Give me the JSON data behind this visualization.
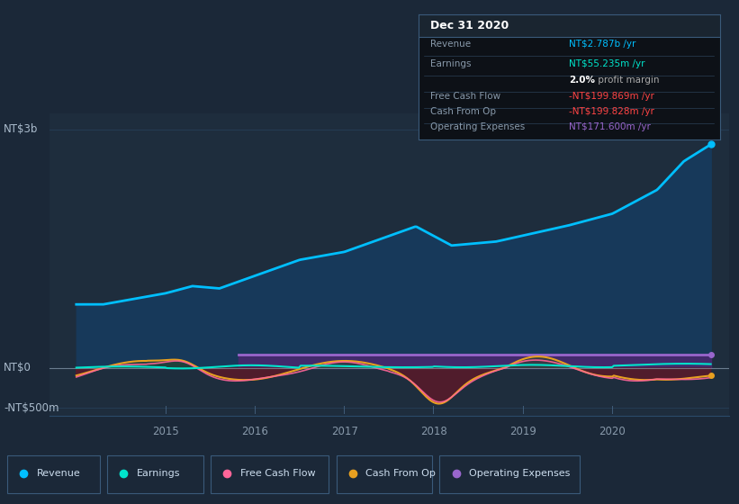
{
  "bg_color": "#1b2838",
  "plot_bg_color": "#1e2d3d",
  "revenue_color": "#00bfff",
  "earnings_color": "#00e5cc",
  "fcf_color": "#ff6699",
  "cashfromop_color": "#e8a020",
  "opex_color": "#9966cc",
  "legend_items": [
    "Revenue",
    "Earnings",
    "Free Cash Flow",
    "Cash From Op",
    "Operating Expenses"
  ],
  "legend_colors": [
    "#00bfff",
    "#00e5cc",
    "#ff6699",
    "#e8a020",
    "#9966cc"
  ],
  "ylim": [
    -600,
    3200
  ],
  "xlim_start": 2013.7,
  "xlim_end": 2021.3
}
